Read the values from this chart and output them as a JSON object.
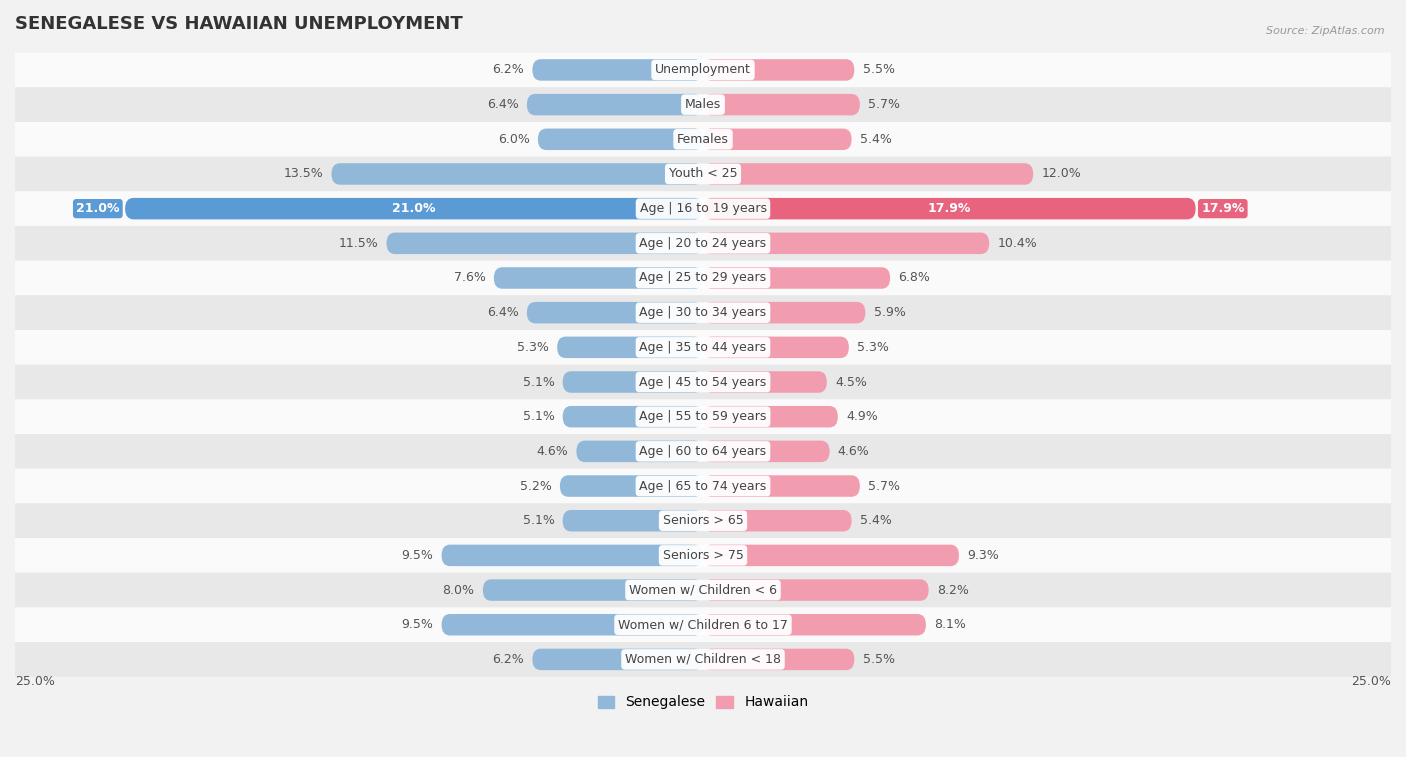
{
  "title": "SENEGALESE VS HAWAIIAN UNEMPLOYMENT",
  "source": "Source: ZipAtlas.com",
  "categories": [
    "Unemployment",
    "Males",
    "Females",
    "Youth < 25",
    "Age | 16 to 19 years",
    "Age | 20 to 24 years",
    "Age | 25 to 29 years",
    "Age | 30 to 34 years",
    "Age | 35 to 44 years",
    "Age | 45 to 54 years",
    "Age | 55 to 59 years",
    "Age | 60 to 64 years",
    "Age | 65 to 74 years",
    "Seniors > 65",
    "Seniors > 75",
    "Women w/ Children < 6",
    "Women w/ Children 6 to 17",
    "Women w/ Children < 18"
  ],
  "senegalese": [
    6.2,
    6.4,
    6.0,
    13.5,
    21.0,
    11.5,
    7.6,
    6.4,
    5.3,
    5.1,
    5.1,
    4.6,
    5.2,
    5.1,
    9.5,
    8.0,
    9.5,
    6.2
  ],
  "hawaiian": [
    5.5,
    5.7,
    5.4,
    12.0,
    17.9,
    10.4,
    6.8,
    5.9,
    5.3,
    4.5,
    4.9,
    4.6,
    5.7,
    5.4,
    9.3,
    8.2,
    8.1,
    5.5
  ],
  "senegalese_color": "#91b8d9",
  "hawaiian_color": "#f29daf",
  "senegalese_highlight_color": "#5b9bd5",
  "hawaiian_highlight_color": "#e8637e",
  "highlight_row": 4,
  "background_color": "#f2f2f2",
  "row_bg_light": "#fafafa",
  "row_bg_dark": "#e8e8e8",
  "max_val": 25.0,
  "legend_senegalese": "Senegalese",
  "legend_hawaiian": "Hawaiian",
  "label_fontsize": 9.0,
  "value_fontsize": 9.0,
  "title_fontsize": 13
}
